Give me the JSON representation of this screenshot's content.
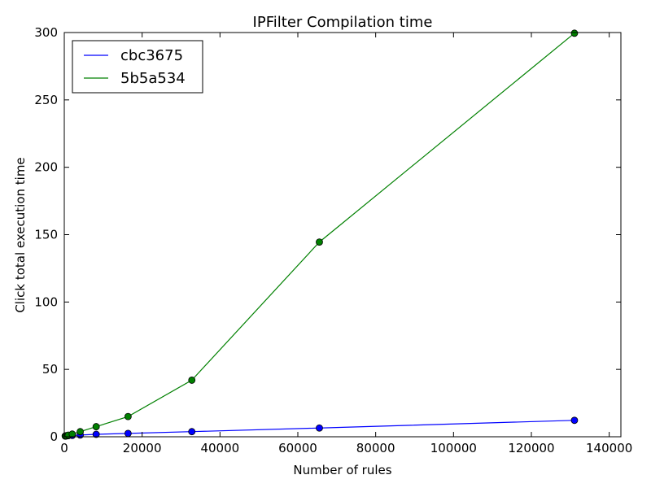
{
  "chart_data": {
    "type": "line",
    "title": "IPFilter Compilation time",
    "xlabel": "Number of rules",
    "ylabel": "Click total execution time",
    "xlim": [
      0,
      143000
    ],
    "ylim": [
      0,
      300
    ],
    "x_ticks": [
      0,
      20000,
      40000,
      60000,
      80000,
      100000,
      120000,
      140000
    ],
    "y_ticks": [
      0,
      50,
      100,
      150,
      200,
      250,
      300
    ],
    "x_tick_labels": [
      "0",
      "20000",
      "40000",
      "60000",
      "80000",
      "100000",
      "120000",
      "140000"
    ],
    "y_tick_labels": [
      "0",
      "50",
      "100",
      "150",
      "200",
      "250",
      "300"
    ],
    "grid": false,
    "legend_position": "top-left",
    "x": [
      256,
      512,
      1024,
      2048,
      4096,
      8192,
      16384,
      32768,
      65536,
      131072
    ],
    "series": [
      {
        "name": "cbc3675",
        "color": "#0000ff",
        "marker": "circle",
        "values": [
          0.5,
          0.6,
          0.8,
          1.0,
          1.3,
          1.8,
          2.5,
          3.8,
          6.5,
          12.2
        ]
      },
      {
        "name": "5b5a534",
        "color": "#008000",
        "marker": "circle",
        "values": [
          0.6,
          0.8,
          1.2,
          2.0,
          3.8,
          7.5,
          15.0,
          42.0,
          144.5,
          299.5
        ]
      }
    ]
  }
}
